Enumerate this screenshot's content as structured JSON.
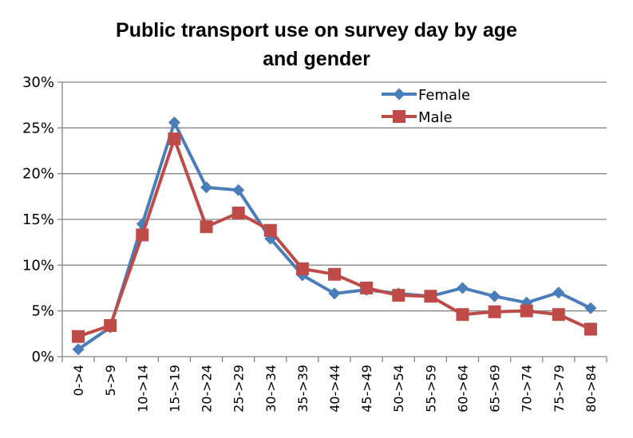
{
  "chart_data": {
    "type": "line",
    "title": "Public transport use on survey day by age and gender",
    "title_lines": [
      "Public transport use on survey day by age",
      "and gender"
    ],
    "xlabel": "",
    "ylabel": "",
    "categories": [
      "0->4",
      "5->9",
      "10->14",
      "15->19",
      "20->24",
      "25->29",
      "30->34",
      "35->39",
      "40->44",
      "45->49",
      "50->54",
      "55->59",
      "60->64",
      "65->69",
      "70->74",
      "75->79",
      "80->84"
    ],
    "ylim": [
      0,
      30
    ],
    "yticks": [
      0,
      5,
      10,
      15,
      20,
      25,
      30
    ],
    "ytick_labels": [
      "0%",
      "5%",
      "10%",
      "15%",
      "20%",
      "25%",
      "30%"
    ],
    "grid": true,
    "legend_position": "top-right",
    "series": [
      {
        "name": "Female",
        "color": "#4a7ebb",
        "marker": "diamond",
        "values": [
          0.8,
          3.2,
          14.5,
          25.6,
          18.5,
          18.2,
          12.9,
          8.9,
          6.9,
          7.3,
          6.9,
          6.6,
          7.5,
          6.6,
          5.9,
          7.0,
          5.3
        ]
      },
      {
        "name": "Male",
        "color": "#be4b48",
        "marker": "square",
        "values": [
          2.2,
          3.4,
          13.3,
          23.8,
          14.2,
          15.7,
          13.8,
          9.6,
          9.0,
          7.5,
          6.7,
          6.6,
          4.6,
          4.9,
          5.0,
          4.6,
          3.0
        ]
      }
    ]
  }
}
